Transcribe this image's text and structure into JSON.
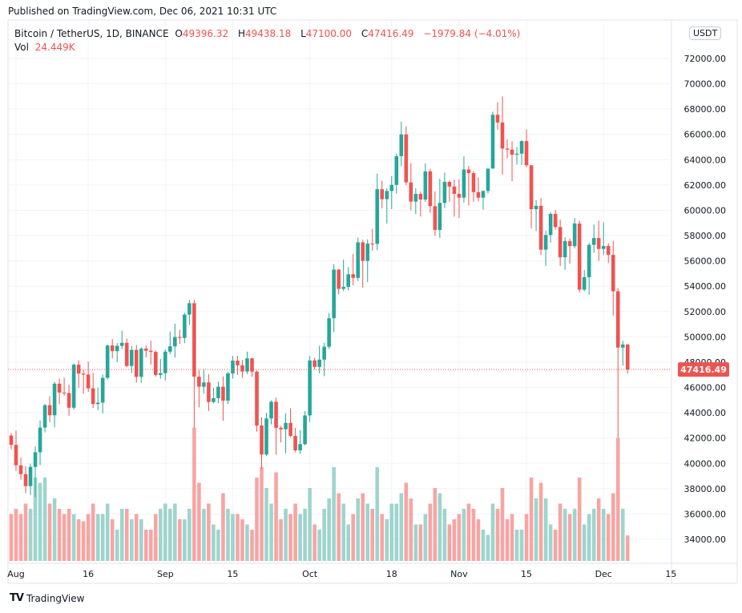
{
  "published": "Published on TradingView.com, Dec 06, 2021 10:31 UTC",
  "legend": {
    "symbol": "Bitcoin / TetherUS, 1D, BINANCE",
    "open_label": "O",
    "open": "49396.32",
    "high_label": "H",
    "high": "49438.18",
    "low_label": "L",
    "low": "47100.00",
    "close_label": "C",
    "close": "47416.49",
    "change": "−1979.84 (−4.01%)",
    "vol_label": "Vol",
    "vol": "24.449K"
  },
  "currency_badge": "USDT",
  "brand": "TradingView",
  "colors": {
    "up": "#26a69a",
    "down": "#ef5350",
    "up_vol": "#9ed4ce",
    "down_vol": "#f6a5a3",
    "grid": "#f0f3fa"
  },
  "chart_data": {
    "type": "candlestick",
    "title": "Bitcoin / TetherUS, 1D, BINANCE",
    "first_candle_day_offset_from_aug1": -1,
    "candle_fields": [
      "open",
      "high",
      "low",
      "close",
      "volume_k"
    ],
    "candles": [
      [
        42200,
        42400,
        41100,
        41460,
        45
      ],
      [
        41460,
        42600,
        39420,
        39850,
        50
      ],
      [
        39850,
        40450,
        38700,
        39150,
        45
      ],
      [
        39150,
        39780,
        37640,
        38200,
        55
      ],
      [
        38200,
        39970,
        37510,
        39720,
        50
      ],
      [
        39720,
        41350,
        37330,
        40880,
        80
      ],
      [
        40880,
        43390,
        39850,
        42830,
        75
      ],
      [
        42830,
        44700,
        42450,
        44600,
        80
      ],
      [
        44600,
        45310,
        43260,
        43800,
        55
      ],
      [
        43800,
        46450,
        42840,
        46300,
        60
      ],
      [
        46300,
        46700,
        44680,
        45600,
        50
      ],
      [
        45600,
        46780,
        45350,
        45560,
        45
      ],
      [
        45560,
        46220,
        43770,
        44400,
        50
      ],
      [
        44400,
        47890,
        44240,
        47800,
        45
      ],
      [
        47800,
        48140,
        45970,
        47100,
        40
      ],
      [
        47100,
        47380,
        45500,
        47020,
        38
      ],
      [
        47020,
        48050,
        45650,
        45930,
        45
      ],
      [
        45930,
        47160,
        44380,
        44690,
        55
      ],
      [
        44690,
        46000,
        44200,
        44800,
        45
      ],
      [
        44800,
        47030,
        43950,
        46760,
        45
      ],
      [
        46760,
        49380,
        46620,
        49320,
        55
      ],
      [
        49320,
        49820,
        48290,
        48870,
        40
      ],
      [
        48870,
        49520,
        48000,
        49290,
        30
      ],
      [
        49290,
        50500,
        49030,
        49530,
        50
      ],
      [
        49530,
        49860,
        47600,
        47700,
        50
      ],
      [
        47700,
        49290,
        47150,
        48970,
        40
      ],
      [
        48970,
        49360,
        46400,
        46840,
        45
      ],
      [
        46840,
        49180,
        46370,
        49070,
        40
      ],
      [
        49070,
        49320,
        48380,
        48900,
        30
      ],
      [
        48900,
        49690,
        47800,
        48810,
        30
      ],
      [
        48810,
        48930,
        46860,
        46990,
        45
      ],
      [
        46990,
        48250,
        46700,
        47130,
        50
      ],
      [
        47130,
        49000,
        46570,
        48830,
        55
      ],
      [
        48830,
        50430,
        48630,
        49250,
        50
      ],
      [
        49250,
        51050,
        48360,
        49990,
        55
      ],
      [
        49990,
        50560,
        49440,
        49920,
        40
      ],
      [
        49920,
        51900,
        49500,
        51760,
        40
      ],
      [
        51760,
        52920,
        50950,
        52660,
        50
      ],
      [
        52660,
        52920,
        42830,
        46860,
        128
      ],
      [
        46860,
        47380,
        44420,
        46060,
        75
      ],
      [
        46060,
        47400,
        45500,
        46400,
        50
      ],
      [
        46400,
        47040,
        44140,
        44850,
        55
      ],
      [
        44850,
        45980,
        44740,
        45150,
        35
      ],
      [
        45150,
        46460,
        44750,
        46060,
        30
      ],
      [
        46060,
        46880,
        43370,
        44960,
        65
      ],
      [
        44960,
        47250,
        44700,
        47110,
        50
      ],
      [
        47110,
        48490,
        46700,
        48120,
        45
      ],
      [
        48120,
        48500,
        47000,
        47750,
        45
      ],
      [
        47750,
        48170,
        46760,
        47260,
        40
      ],
      [
        47260,
        48830,
        47060,
        48300,
        35
      ],
      [
        48300,
        48350,
        46850,
        47250,
        30
      ],
      [
        47250,
        47350,
        42500,
        42990,
        80
      ],
      [
        42990,
        43640,
        39600,
        40700,
        90
      ],
      [
        40700,
        44000,
        40570,
        43550,
        70
      ],
      [
        43550,
        44980,
        43080,
        44870,
        55
      ],
      [
        44870,
        45200,
        40680,
        42810,
        85
      ],
      [
        42810,
        42970,
        41660,
        42690,
        40
      ],
      [
        42690,
        43940,
        40800,
        43200,
        50
      ],
      [
        43200,
        44350,
        42090,
        42170,
        45
      ],
      [
        42170,
        42800,
        40880,
        41030,
        55
      ],
      [
        41030,
        42620,
        40750,
        41520,
        45
      ],
      [
        41520,
        44130,
        41420,
        43790,
        50
      ],
      [
        43790,
        48490,
        43280,
        48140,
        70
      ],
      [
        48140,
        48350,
        47420,
        47630,
        35
      ],
      [
        47630,
        49300,
        47120,
        48200,
        30
      ],
      [
        48200,
        49530,
        46890,
        49220,
        50
      ],
      [
        49220,
        51890,
        49060,
        51470,
        60
      ],
      [
        51470,
        55750,
        50380,
        55320,
        90
      ],
      [
        55320,
        55340,
        53360,
        53790,
        65
      ],
      [
        53790,
        56100,
        53620,
        53950,
        55
      ],
      [
        53950,
        55500,
        53660,
        54950,
        35
      ],
      [
        54950,
        56560,
        54080,
        54660,
        45
      ],
      [
        54660,
        57840,
        54420,
        57470,
        60
      ],
      [
        57470,
        57670,
        53880,
        56000,
        65
      ],
      [
        56000,
        57700,
        54330,
        57370,
        55
      ],
      [
        57370,
        58550,
        56820,
        57350,
        50
      ],
      [
        57350,
        62900,
        56850,
        61670,
        90
      ],
      [
        61670,
        62330,
        60150,
        60880,
        45
      ],
      [
        60880,
        61720,
        58960,
        61530,
        40
      ],
      [
        61530,
        62700,
        60100,
        62010,
        55
      ],
      [
        62010,
        64490,
        61320,
        64280,
        55
      ],
      [
        64280,
        67000,
        63480,
        66000,
        65
      ],
      [
        66000,
        66640,
        62000,
        62210,
        75
      ],
      [
        62210,
        63730,
        60000,
        60690,
        60
      ],
      [
        60690,
        61750,
        59700,
        61300,
        35
      ],
      [
        61300,
        61500,
        59510,
        60850,
        35
      ],
      [
        60850,
        63710,
        60650,
        63080,
        45
      ],
      [
        63080,
        63290,
        59820,
        60330,
        55
      ],
      [
        60330,
        61500,
        58000,
        58450,
        70
      ],
      [
        58450,
        62500,
        57820,
        60590,
        65
      ],
      [
        60590,
        62980,
        60170,
        62250,
        50
      ],
      [
        62250,
        62360,
        60670,
        61880,
        35
      ],
      [
        61880,
        62440,
        59500,
        61300,
        40
      ],
      [
        61300,
        62440,
        59400,
        61000,
        45
      ],
      [
        61000,
        64270,
        60620,
        63230,
        50
      ],
      [
        63230,
        63520,
        60380,
        62940,
        55
      ],
      [
        62940,
        63100,
        60680,
        61440,
        50
      ],
      [
        61440,
        62600,
        60720,
        61000,
        40
      ],
      [
        61000,
        61560,
        60050,
        61530,
        30
      ],
      [
        61530,
        63300,
        61330,
        63300,
        25
      ],
      [
        63300,
        67790,
        63300,
        67550,
        55
      ],
      [
        67550,
        68530,
        66380,
        66940,
        50
      ],
      [
        66940,
        69000,
        62820,
        64880,
        70
      ],
      [
        64880,
        65600,
        64100,
        64800,
        40
      ],
      [
        64800,
        65460,
        62300,
        64400,
        45
      ],
      [
        64400,
        65000,
        63600,
        64480,
        30
      ],
      [
        64480,
        65530,
        63580,
        65470,
        30
      ],
      [
        65470,
        66400,
        63400,
        63560,
        45
      ],
      [
        63560,
        63560,
        58570,
        60090,
        80
      ],
      [
        60090,
        60820,
        58370,
        60360,
        60
      ],
      [
        60360,
        60980,
        56470,
        56890,
        75
      ],
      [
        56890,
        58370,
        55600,
        58050,
        60
      ],
      [
        58050,
        59850,
        57450,
        59720,
        35
      ],
      [
        59720,
        60030,
        58480,
        58680,
        30
      ],
      [
        58680,
        59270,
        55610,
        56290,
        55
      ],
      [
        56290,
        57870,
        55300,
        57570,
        50
      ],
      [
        57570,
        57750,
        55800,
        57170,
        45
      ],
      [
        57170,
        59400,
        57000,
        58960,
        50
      ],
      [
        58960,
        59180,
        53500,
        53730,
        80
      ],
      [
        53730,
        55280,
        53610,
        54720,
        35
      ],
      [
        54720,
        57440,
        53330,
        57270,
        45
      ],
      [
        57270,
        58870,
        56660,
        57810,
        50
      ],
      [
        57810,
        59180,
        56000,
        56950,
        60
      ],
      [
        56950,
        59050,
        56450,
        57180,
        50
      ],
      [
        57180,
        57400,
        55840,
        56480,
        45
      ],
      [
        56480,
        57600,
        51680,
        53600,
        65
      ],
      [
        53600,
        53860,
        42000,
        49150,
        118
      ],
      [
        49150,
        49700,
        47730,
        49396,
        50
      ],
      [
        49396.32,
        49438.18,
        47100,
        47416.49,
        24.449
      ]
    ],
    "y_ticks": [
      "72000.00",
      "70000.00",
      "68000.00",
      "66000.00",
      "64000.00",
      "62000.00",
      "60000.00",
      "58000.00",
      "56000.00",
      "54000.00",
      "52000.00",
      "50000.00",
      "48000.00",
      "46000.00",
      "44000.00",
      "42000.00",
      "40000.00",
      "38000.00",
      "36000.00",
      "34000.00"
    ],
    "ylim": [
      33000,
      75000
    ],
    "x_ticks": [
      {
        "label": "Aug",
        "day": 0
      },
      {
        "label": "16",
        "day": 15
      },
      {
        "label": "Sep",
        "day": 31
      },
      {
        "label": "15",
        "day": 45
      },
      {
        "label": "Oct",
        "day": 61
      },
      {
        "label": "18",
        "day": 78
      },
      {
        "label": "Nov",
        "day": 92
      },
      {
        "label": "15",
        "day": 106
      },
      {
        "label": "Dec",
        "day": 122
      },
      {
        "label": "15",
        "day": 136
      }
    ],
    "last_price": "47416.49",
    "last_price_value": 47416.49
  }
}
